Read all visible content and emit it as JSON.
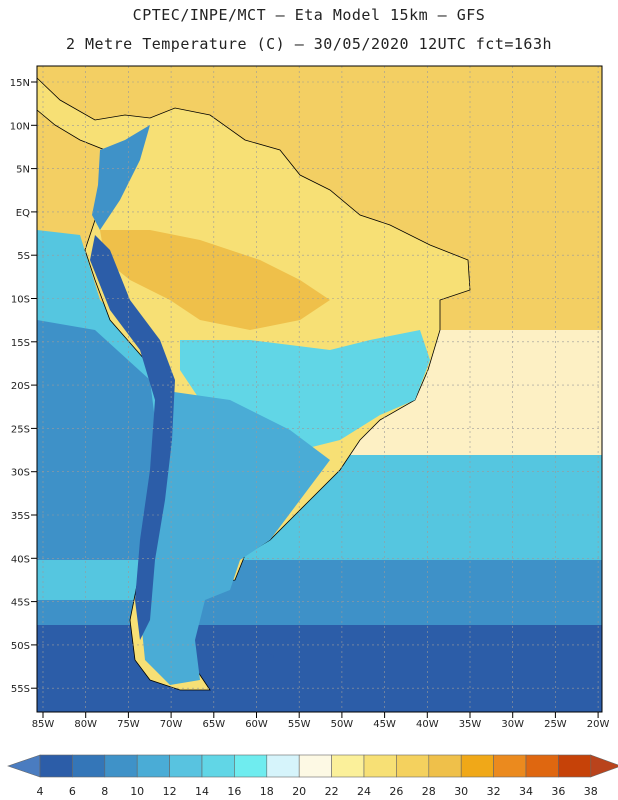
{
  "header": {
    "line1": "CPTEC/INPE/MCT –  Eta Model 15km – GFS",
    "line2": "2 Metre Temperature (C) – 30/05/2020 12UTC fct=163h"
  },
  "axes": {
    "lat_labels": [
      "15N",
      "10N",
      "5N",
      "EQ",
      "5S",
      "10S",
      "15S",
      "20S",
      "25S",
      "30S",
      "35S",
      "40S",
      "45S",
      "50S",
      "55S"
    ],
    "lon_labels": [
      "85W",
      "80W",
      "75W",
      "70W",
      "65W",
      "60W",
      "55W",
      "50W",
      "45W",
      "40W",
      "35W",
      "30W",
      "25W",
      "20W"
    ]
  },
  "colorbar": {
    "unit": "C",
    "labels": [
      "4",
      "6",
      "8",
      "10",
      "12",
      "14",
      "16",
      "18",
      "20",
      "22",
      "24",
      "26",
      "28",
      "30",
      "32",
      "34",
      "36",
      "38"
    ],
    "colors": [
      "#2c5da8",
      "#3476b8",
      "#3f92c8",
      "#4aacd6",
      "#58c3e0",
      "#61d6e6",
      "#6fecef",
      "#d6f4fb",
      "#fdf9e4",
      "#fbf09a",
      "#f7e075",
      "#f4d15e",
      "#efc04a",
      "#f0a818",
      "#eb8a1e",
      "#df6710",
      "#c64208"
    ],
    "low_color": "#4a7cc0",
    "high_color": "#b9431c"
  },
  "map_colors": {
    "ocean_tropical": "#f3cf63",
    "ocean_subtropical": "#fdf0c4",
    "ocean_mid": "#55c6e0",
    "ocean_south": "#3e91c8",
    "ocean_polar": "#2c5da8",
    "land_north": "#f7e075",
    "land_hot": "#efc04a",
    "andes_cold": "#2c5da8",
    "andes_cool": "#3f92c8",
    "south_cone": "#4aacd6",
    "highland_cool": "#61d6e6"
  }
}
